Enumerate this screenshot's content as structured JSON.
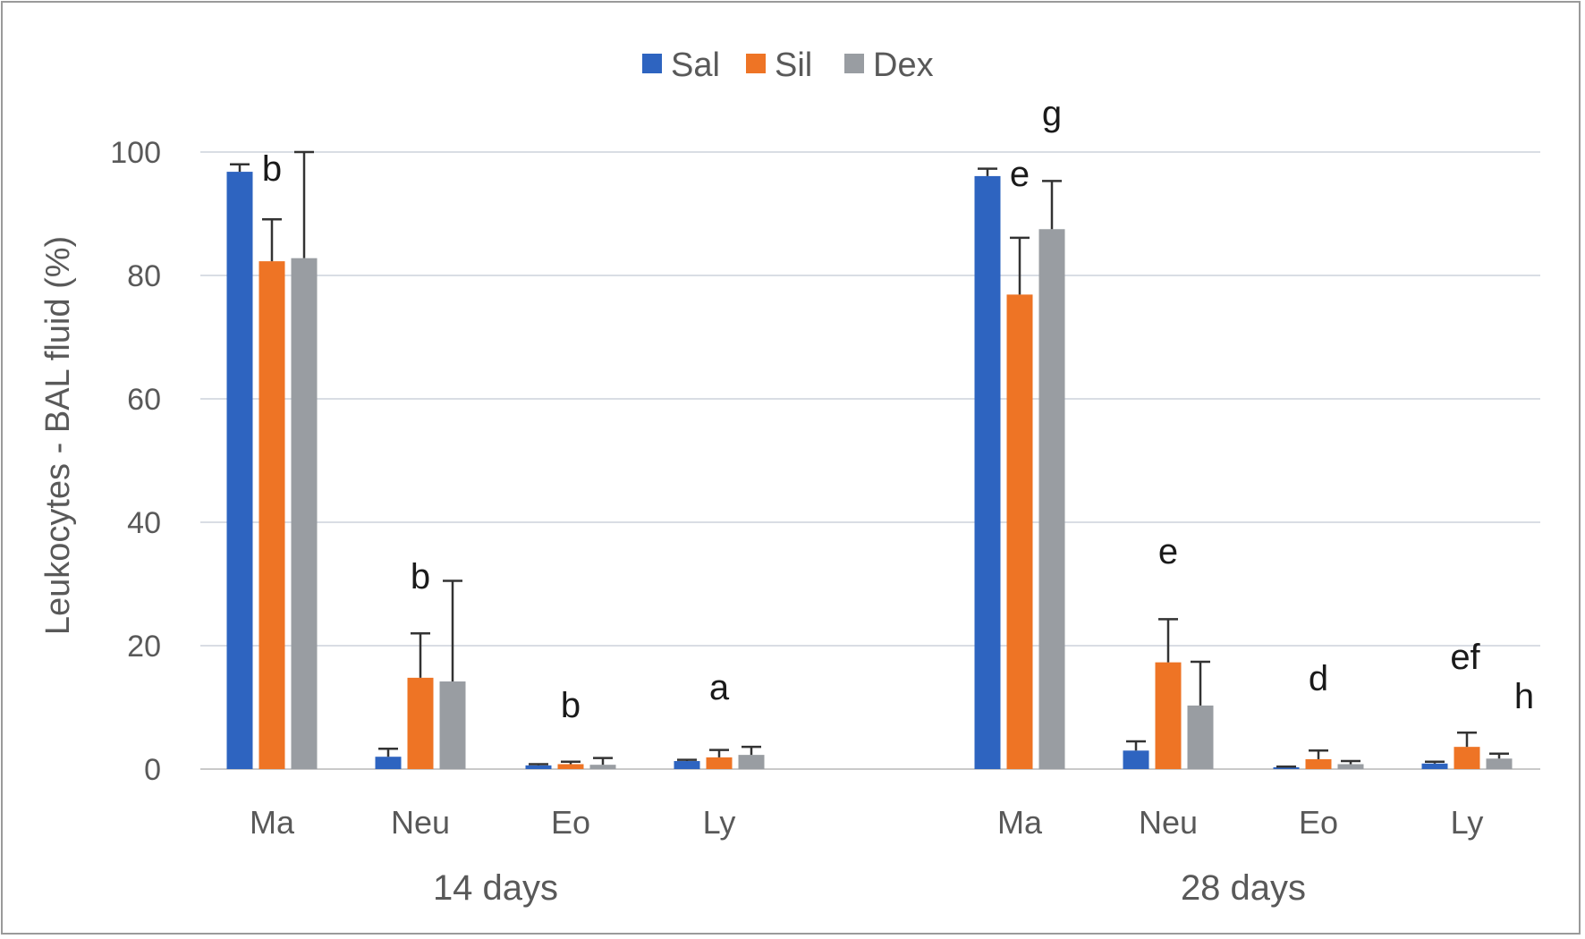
{
  "chart_data": {
    "type": "bar",
    "ylabel": "Leukocytes - BAL fluid (%)",
    "ylim": [
      0,
      100
    ],
    "yticks": [
      0,
      20,
      40,
      60,
      80,
      100
    ],
    "grid": true,
    "legend_position": "top-center",
    "series": [
      {
        "name": "Sal",
        "color": "#2e64c0"
      },
      {
        "name": "Sil",
        "color": "#ee7425"
      },
      {
        "name": "Dex",
        "color": "#999da2"
      }
    ],
    "groups": [
      {
        "label": "14 days",
        "categories": [
          {
            "name": "Ma",
            "values": [
              96.8,
              82.3,
              82.8
            ],
            "errors": [
              1.2,
              6.8,
              17.2
            ],
            "annotations": [
              "",
              "b",
              ""
            ]
          },
          {
            "name": "Neu",
            "values": [
              2.0,
              14.8,
              14.2
            ],
            "errors": [
              1.3,
              7.2,
              16.3
            ],
            "annotations": [
              "",
              "b",
              ""
            ]
          },
          {
            "name": "Eo",
            "values": [
              0.6,
              0.8,
              0.7
            ],
            "errors": [
              0.2,
              0.4,
              1.1
            ],
            "annotations": [
              "",
              "b",
              ""
            ]
          },
          {
            "name": "Ly",
            "values": [
              1.3,
              1.9,
              2.3
            ],
            "errors": [
              0.2,
              1.2,
              1.3
            ],
            "annotations": [
              "",
              "a",
              ""
            ]
          }
        ]
      },
      {
        "label": "28 days",
        "categories": [
          {
            "name": "Ma",
            "values": [
              96.1,
              76.9,
              87.5
            ],
            "errors": [
              1.2,
              9.2,
              7.8
            ],
            "annotations": [
              "",
              "e",
              "g"
            ]
          },
          {
            "name": "Neu",
            "values": [
              3.0,
              17.3,
              10.3
            ],
            "errors": [
              1.5,
              7.0,
              7.1
            ],
            "annotations": [
              "",
              "e",
              ""
            ]
          },
          {
            "name": "Eo",
            "values": [
              0.3,
              1.6,
              0.8
            ],
            "errors": [
              0.1,
              1.4,
              0.5
            ],
            "annotations": [
              "",
              "d",
              ""
            ]
          },
          {
            "name": "Ly",
            "values": [
              0.9,
              3.6,
              1.7
            ],
            "errors": [
              0.3,
              2.3,
              0.8
            ],
            "annotations": [
              "",
              "ef",
              "h"
            ]
          }
        ]
      }
    ]
  }
}
